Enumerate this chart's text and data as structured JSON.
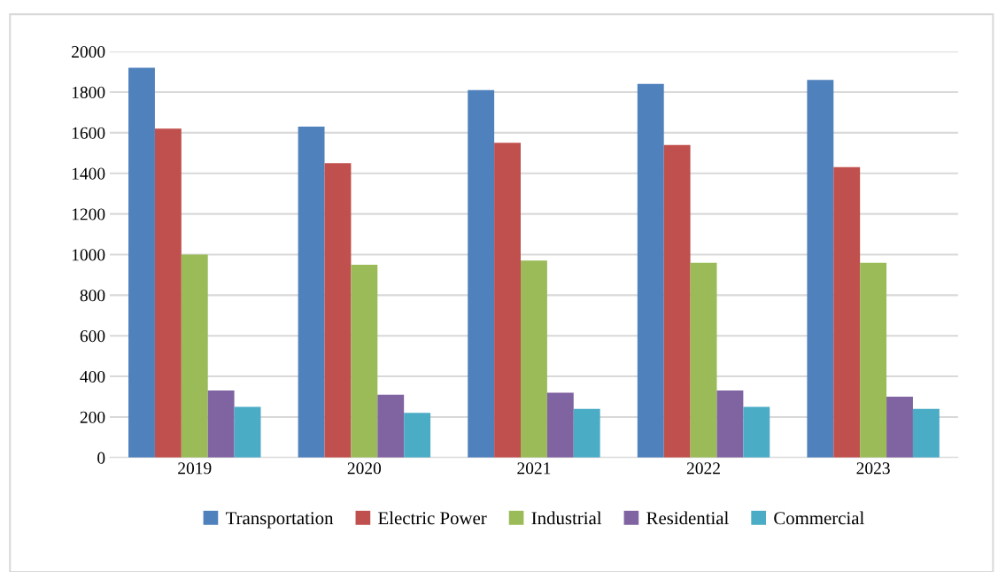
{
  "chart_data": {
    "type": "bar",
    "categories": [
      "2019",
      "2020",
      "2021",
      "2022",
      "2023"
    ],
    "series": [
      {
        "name": "Transportation",
        "color": "#4f81bd",
        "values": [
          1920,
          1630,
          1810,
          1840,
          1860
        ]
      },
      {
        "name": "Electric Power",
        "color": "#c0504d",
        "values": [
          1620,
          1450,
          1550,
          1540,
          1430
        ]
      },
      {
        "name": "Industrial",
        "color": "#9bbb59",
        "values": [
          1000,
          950,
          970,
          960,
          960
        ]
      },
      {
        "name": "Residential",
        "color": "#8064a2",
        "values": [
          330,
          310,
          320,
          330,
          300
        ]
      },
      {
        "name": "Commercial",
        "color": "#4bacc6",
        "values": [
          250,
          220,
          240,
          250,
          240
        ]
      }
    ],
    "ylim": [
      0,
      2000
    ],
    "yticks": [
      0,
      200,
      400,
      600,
      800,
      1000,
      1200,
      1400,
      1600,
      1800,
      2000
    ],
    "grid": "y",
    "legend": "bottom"
  }
}
